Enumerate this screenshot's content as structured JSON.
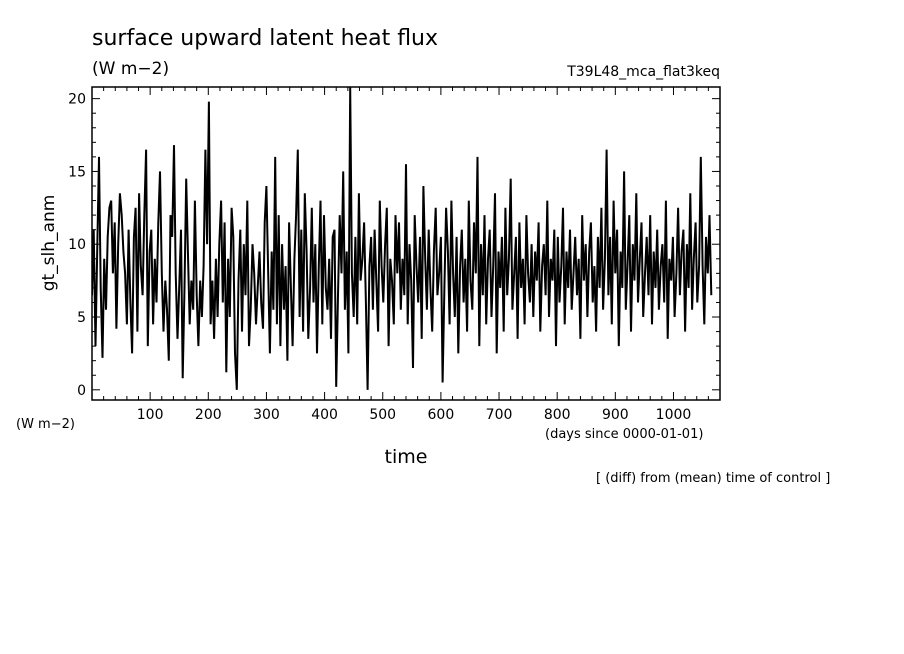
{
  "chart_data": {
    "type": "line",
    "title": "surface upward latent heat flux",
    "units": "(W m−2)",
    "run_label": "T39L48_mca_flat3keq",
    "ylabel": "gt_slh_anm",
    "yunits": "(W m−2)",
    "xlabel": "time",
    "xunits": "(days since 0000-01-01)",
    "note": "[ (diff) from (mean) time of control ]",
    "xlim": [
      0,
      1080
    ],
    "ylim": [
      -0.7,
      20.8
    ],
    "x_major_ticks": [
      100,
      200,
      300,
      400,
      500,
      600,
      700,
      800,
      900,
      1000
    ],
    "x_tick_labels": [
      "100",
      "200",
      "300",
      "400",
      "500",
      "600",
      "700",
      "800",
      "900",
      "1000"
    ],
    "y_major_ticks": [
      0,
      5,
      10,
      15,
      20
    ],
    "y_tick_labels": [
      "0",
      "5",
      "10",
      "15",
      "20"
    ],
    "series": [
      {
        "color": "#000000",
        "x_start": 0,
        "x_step": 3,
        "values": [
          6.5,
          11.0,
          3.0,
          9.5,
          16.0,
          7.0,
          2.2,
          9.0,
          5.5,
          10.5,
          12.5,
          13.0,
          8.0,
          11.5,
          4.2,
          10.0,
          13.5,
          12.0,
          9.5,
          8.0,
          4.5,
          11.0,
          6.0,
          2.5,
          10.5,
          12.5,
          4.0,
          13.5,
          8.5,
          6.5,
          12.0,
          16.5,
          3.0,
          9.5,
          11.0,
          4.5,
          9.0,
          6.0,
          11.5,
          15.0,
          8.0,
          4.0,
          7.5,
          5.5,
          2.0,
          12.0,
          10.5,
          16.8,
          8.0,
          3.5,
          7.0,
          11.0,
          0.8,
          7.0,
          14.5,
          9.5,
          4.5,
          7.5,
          5.5,
          13.0,
          6.5,
          3.0,
          7.5,
          5.0,
          8.5,
          16.5,
          10.0,
          19.8,
          4.5,
          7.5,
          3.5,
          9.0,
          5.0,
          10.0,
          13.0,
          6.0,
          11.5,
          1.2,
          9.0,
          5.0,
          12.5,
          10.5,
          2.5,
          0.0,
          7.5,
          11.0,
          4.0,
          10.0,
          6.5,
          13.0,
          3.0,
          5.5,
          10.0,
          8.0,
          4.5,
          7.0,
          9.5,
          6.0,
          4.2,
          11.5,
          14.0,
          8.0,
          2.5,
          9.5,
          5.5,
          16.0,
          4.5,
          12.0,
          3.0,
          10.0,
          5.5,
          8.5,
          2.0,
          11.5,
          7.0,
          3.0,
          9.0,
          12.0,
          16.5,
          5.0,
          11.0,
          4.0,
          13.5,
          9.5,
          3.5,
          7.0,
          12.5,
          6.0,
          10.0,
          2.5,
          8.5,
          13.0,
          4.5,
          12.0,
          7.0,
          5.5,
          9.0,
          3.5,
          10.5,
          11.0,
          0.2,
          6.5,
          12.0,
          8.0,
          15.0,
          5.5,
          9.5,
          2.5,
          20.8,
          8.0,
          5.0,
          10.5,
          4.5,
          13.5,
          7.5,
          9.0,
          11.5,
          6.0,
          0.0,
          8.5,
          10.5,
          5.5,
          11.0,
          7.5,
          4.0,
          13.0,
          8.5,
          6.0,
          10.0,
          12.5,
          3.0,
          9.0,
          7.5,
          4.5,
          12.0,
          8.0,
          11.5,
          5.5,
          9.0,
          6.5,
          15.5,
          4.5,
          10.0,
          7.5,
          1.5,
          12.0,
          8.5,
          6.0,
          10.5,
          3.5,
          14.0,
          9.0,
          5.5,
          11.0,
          7.0,
          4.0,
          9.5,
          12.5,
          6.5,
          8.0,
          10.5,
          0.5,
          7.0,
          12.5,
          9.5,
          4.5,
          13.0,
          8.0,
          5.0,
          10.5,
          2.5,
          8.5,
          11.0,
          6.0,
          9.0,
          4.0,
          13.0,
          7.5,
          5.5,
          11.5,
          8.0,
          16.0,
          3.0,
          10.0,
          6.5,
          12.0,
          4.5,
          9.0,
          11.0,
          5.0,
          8.5,
          13.5,
          2.5,
          9.5,
          7.0,
          10.5,
          4.0,
          12.5,
          6.5,
          9.0,
          14.5,
          5.5,
          8.0,
          10.5,
          3.5,
          11.5,
          7.0,
          9.0,
          4.5,
          12.0,
          8.0,
          6.0,
          10.0,
          5.0,
          9.5,
          7.5,
          11.5,
          4.0,
          8.5,
          10.0,
          6.5,
          13.0,
          5.0,
          9.0,
          7.5,
          11.0,
          3.0,
          10.5,
          6.0,
          8.5,
          12.5,
          4.5,
          9.5,
          7.0,
          11.0,
          5.5,
          8.0,
          10.5,
          6.5,
          9.0,
          3.5,
          12.0,
          7.5,
          10.0,
          5.0,
          9.5,
          11.5,
          6.0,
          8.5,
          4.0,
          10.5,
          7.0,
          12.5,
          5.5,
          9.0,
          16.5,
          6.5,
          10.5,
          4.5,
          13.0,
          8.0,
          11.0,
          3.0,
          9.5,
          7.0,
          15.0,
          5.5,
          8.5,
          12.0,
          4.0,
          10.0,
          7.5,
          13.5,
          6.0,
          9.0,
          11.5,
          5.0,
          8.0,
          10.5,
          6.5,
          12.0,
          4.5,
          9.5,
          7.0,
          11.0,
          5.5,
          8.5,
          10.0,
          6.0,
          13.0,
          3.5,
          9.0,
          7.5,
          10.5,
          5.0,
          8.0,
          12.5,
          6.5,
          9.5,
          11.0,
          4.0,
          10.0,
          7.0,
          13.5,
          5.5,
          9.0,
          11.5,
          6.0,
          8.5,
          16.0,
          8.5,
          4.5,
          10.5,
          8.0,
          12.0,
          6.5
        ]
      }
    ]
  }
}
